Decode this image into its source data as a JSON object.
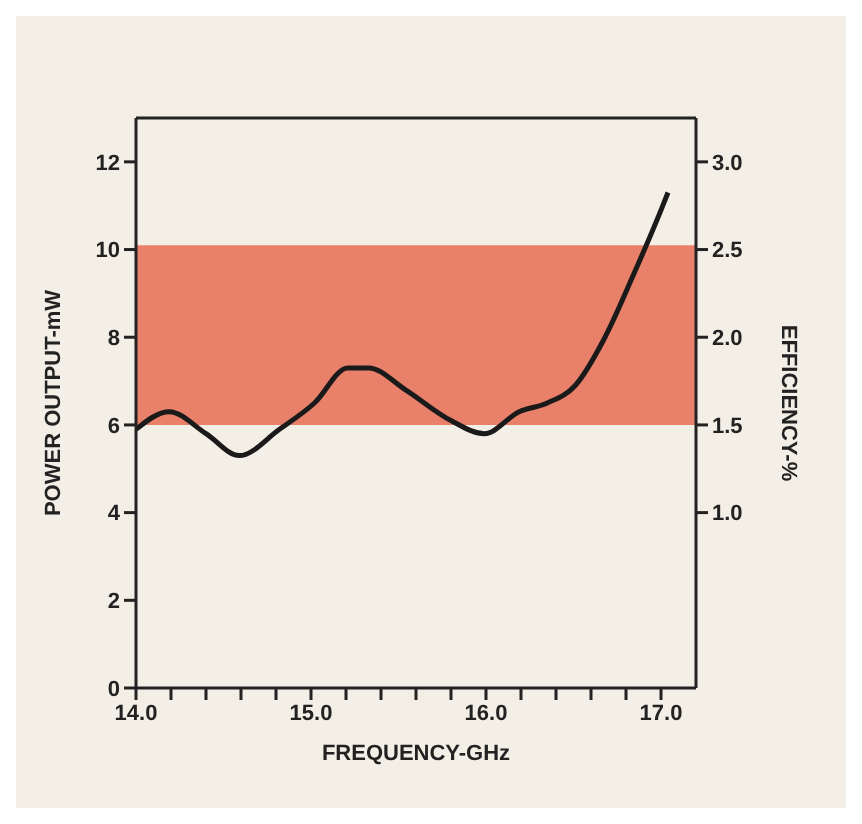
{
  "chart_data": {
    "type": "line",
    "xlabel": "FREQUENCY-GHz",
    "ylabel": "POWER OUTPUT-mW",
    "y2label": "EFFICIENCY-%",
    "xlim": [
      14.0,
      17.2
    ],
    "xticks": [
      {
        "value": 14.0,
        "label": "14.0"
      },
      {
        "value": 14.2,
        "label": null
      },
      {
        "value": 14.4,
        "label": null
      },
      {
        "value": 14.6,
        "label": null
      },
      {
        "value": 14.8,
        "label": null
      },
      {
        "value": 15.0,
        "label": "15.0"
      },
      {
        "value": 15.2,
        "label": null
      },
      {
        "value": 15.4,
        "label": null
      },
      {
        "value": 15.6,
        "label": null
      },
      {
        "value": 15.8,
        "label": null
      },
      {
        "value": 16.0,
        "label": "16.0"
      },
      {
        "value": 16.2,
        "label": null
      },
      {
        "value": 16.4,
        "label": null
      },
      {
        "value": 16.6,
        "label": null
      },
      {
        "value": 16.8,
        "label": null
      },
      {
        "value": 17.0,
        "label": "17.0"
      }
    ],
    "ylim": [
      0,
      13
    ],
    "yticks": [
      0,
      2,
      4,
      6,
      8,
      10,
      12
    ],
    "y2lim": [
      0,
      3.25
    ],
    "y2ticks": [
      {
        "value": 1.0,
        "label": "1.0"
      },
      {
        "value": 1.5,
        "label": "1.5"
      },
      {
        "value": 2.0,
        "label": "2.0"
      },
      {
        "value": 2.5,
        "label": "2.5"
      },
      {
        "value": 3.0,
        "label": "3.0"
      }
    ],
    "bands": [
      {
        "axis": "y",
        "from": 6,
        "to": 10.1,
        "color": "#e8806a"
      }
    ],
    "x": [
      14.0,
      14.19,
      14.4,
      14.59,
      14.82,
      15.02,
      15.21,
      15.33,
      15.54,
      15.8,
      15.99,
      16.19,
      16.35,
      16.51,
      16.68,
      16.84,
      17.0,
      17.04
    ],
    "series": [
      {
        "color": "#1a1a1a",
        "values": [
          5.9,
          6.3,
          5.8,
          5.3,
          5.9,
          6.5,
          7.3,
          7.3,
          6.8,
          6.1,
          5.8,
          6.3,
          6.5,
          6.9,
          8.0,
          9.4,
          10.9,
          11.3
        ]
      }
    ],
    "grid": false,
    "legend": false,
    "marker": "none",
    "line_style": "solid"
  }
}
